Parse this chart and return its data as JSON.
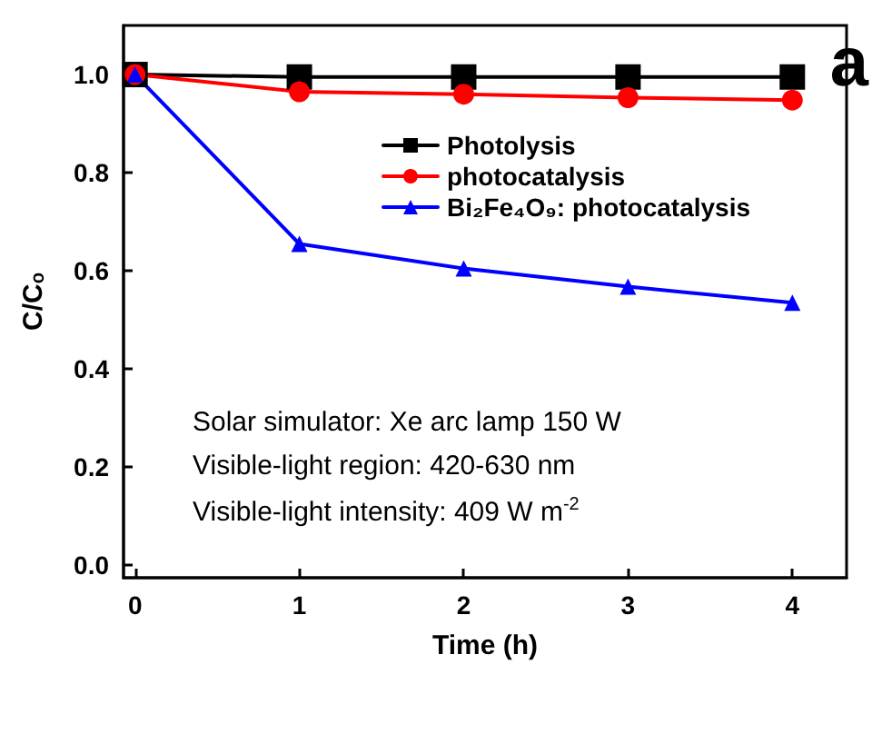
{
  "chart_data": {
    "type": "line",
    "xlabel": "Time (h)",
    "ylabel": "C/Cₒ",
    "x": [
      0,
      1,
      2,
      3,
      4
    ],
    "series": [
      {
        "name": "Photolysis",
        "color": "#000000",
        "marker": "square",
        "values": [
          1.0,
          0.995,
          0.995,
          0.995,
          0.995
        ]
      },
      {
        "name": "photocatalysis",
        "color": "#ff0000",
        "marker": "circle",
        "values": [
          1.0,
          0.965,
          0.96,
          0.953,
          0.948
        ]
      },
      {
        "name": "Bi₂Fe₄O₉: photocatalysis",
        "color": "#0000ff",
        "marker": "triangle",
        "values": [
          1.0,
          0.655,
          0.605,
          0.568,
          0.535
        ]
      }
    ],
    "xlim": [
      -0.07,
      4.33
    ],
    "xticks": [
      0,
      1,
      2,
      3,
      4
    ],
    "ylim": [
      -0.025,
      1.1
    ],
    "yticks": [
      {
        "value": 0,
        "label": "0.0"
      },
      0.2,
      0.4,
      0.6,
      0.8,
      {
        "value": 1,
        "label": "1.0"
      }
    ],
    "grid": false,
    "legend": "top right",
    "line_style": "solid",
    "annotations": [
      "a",
      "Solar simulator: Xe arc lamp 150 W",
      "Visible-light region: 420-630 nm",
      "Visible-light intensity: 409 W m$^{-2}$"
    ]
  }
}
